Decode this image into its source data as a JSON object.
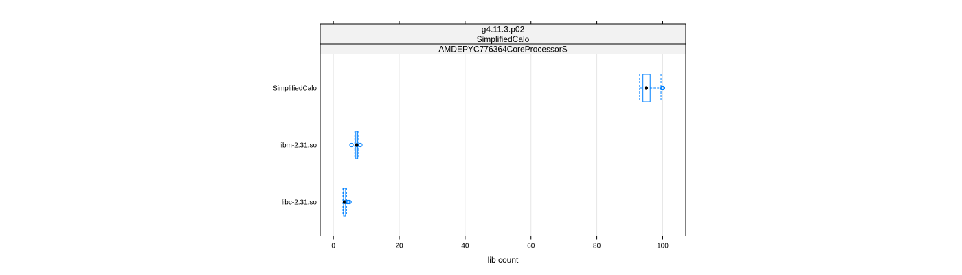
{
  "chart_data": {
    "type": "boxplot",
    "strips": [
      "g4.11.3.p02",
      "SimplifiedCalo",
      "AMDEPYC776364CoreProcessorS"
    ],
    "xlabel": "lib count",
    "xlim": [
      -4,
      107
    ],
    "xticks": [
      0,
      20,
      40,
      60,
      80,
      100
    ],
    "xtick_labels": [
      "0",
      "20",
      "40",
      "60",
      "80",
      "100"
    ],
    "grid": true,
    "colors": {
      "box": "#0080ff",
      "whisker": "#0080ff",
      "median": "#000000",
      "grid": "#e6e6e6",
      "strip_bg": "#f2f2f2"
    },
    "categories": [
      "SimplifiedCalo",
      "libm-2.31.so",
      "libc-2.31.so"
    ],
    "boxes": [
      {
        "category": "SimplifiedCalo",
        "whisker_low": 93,
        "q1": 94,
        "median": 95,
        "q3": 96.2,
        "whisker_high": 99.5,
        "outliers": [
          99.8,
          100.1
        ]
      },
      {
        "category": "libm-2.31.so",
        "whisker_low": 6.5,
        "q1": 6.8,
        "median": 7.1,
        "q3": 7.4,
        "whisker_high": 7.7,
        "outliers": [
          5.5,
          8.2
        ]
      },
      {
        "category": "libc-2.31.so",
        "whisker_low": 2.9,
        "q1": 3.1,
        "median": 3.4,
        "q3": 3.7,
        "whisker_high": 4.0,
        "outliers": [
          4.3,
          4.6,
          4.9
        ]
      }
    ]
  }
}
